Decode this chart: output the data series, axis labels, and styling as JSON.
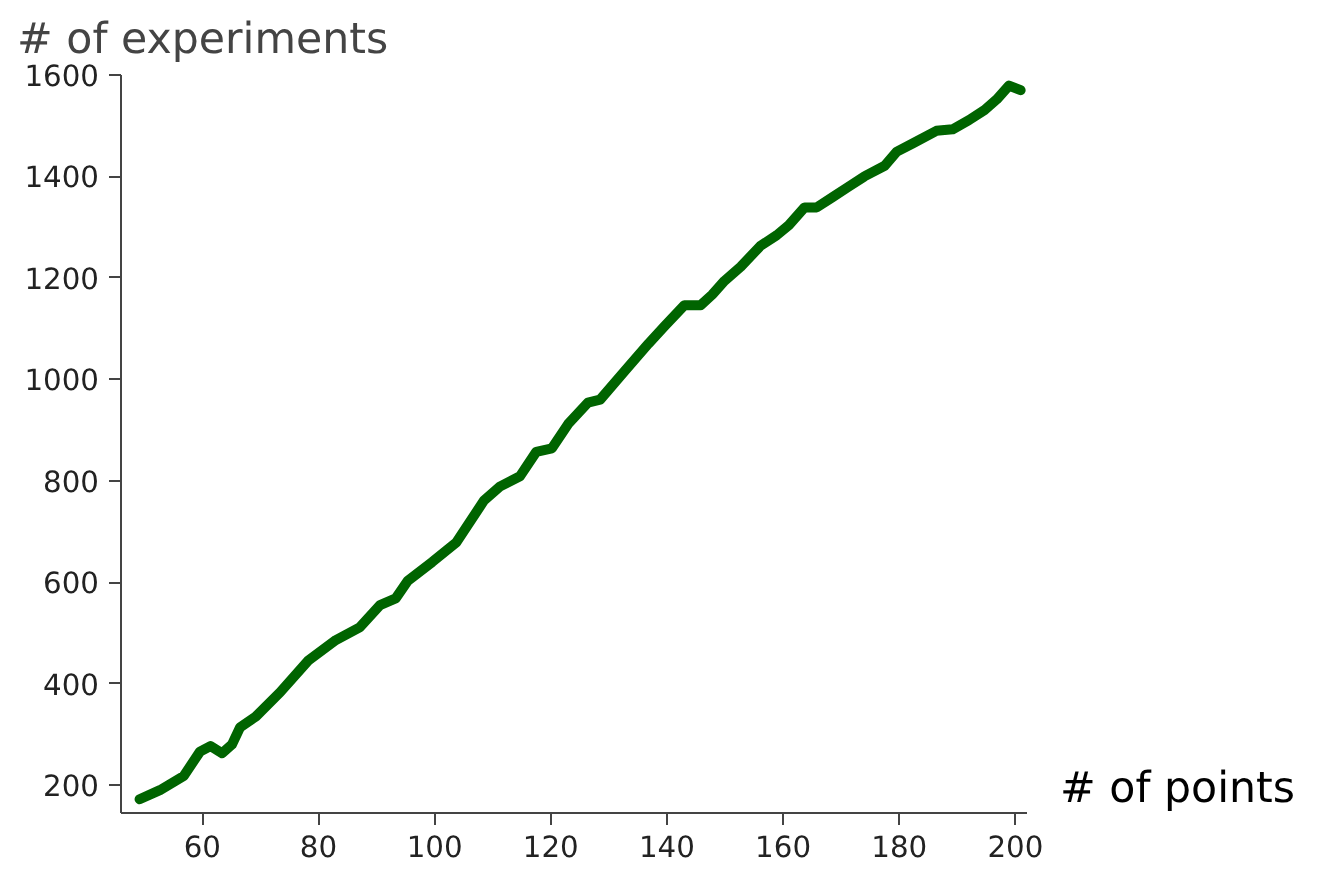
{
  "chart_data": {
    "type": "line",
    "xlabel": "# of points",
    "ylabel": "# of experiments",
    "x": [
      49.2,
      52.7,
      56.8,
      59.6,
      61.4,
      63.4,
      65.1,
      66.5,
      69.2,
      73.4,
      78.2,
      83,
      87.1,
      90.6,
      93.3,
      95.4,
      99.6,
      103.7,
      108.5,
      111.3,
      114.7,
      117.5,
      120.2,
      123,
      126.4,
      128.5,
      132.7,
      136.8,
      139.6,
      143,
      145.8,
      147.8,
      149.9,
      152.7,
      156.1,
      158.9,
      161,
      163.7,
      165.8,
      168.5,
      171.3,
      174,
      177.5,
      179.6,
      182.3,
      186.4,
      189.2,
      192,
      194.7,
      196.8,
      198.9,
      200.9
    ],
    "series": [
      {
        "color": "#006400",
        "values": [
          172,
          190,
          218,
          266,
          277,
          263,
          280,
          314,
          335,
          383,
          445,
          486,
          511,
          555,
          568,
          603,
          640,
          678,
          761,
          789,
          809,
          857,
          864,
          912,
          954,
          960,
          1016,
          1070,
          1105,
          1146,
          1146,
          1167,
          1194,
          1222,
          1263,
          1284,
          1304,
          1339,
          1339,
          1359,
          1380,
          1400,
          1421,
          1449,
          1465,
          1490,
          1493,
          1511,
          1531,
          1552,
          1579,
          1570
        ]
      }
    ],
    "xlim": [
      46,
      202
    ],
    "ylim": [
      145,
      1600
    ],
    "xticks": [
      60,
      80,
      100,
      120,
      140,
      160,
      180,
      200
    ],
    "yticks": [
      200,
      400,
      600,
      800,
      1000,
      1200,
      1400,
      1600
    ],
    "grid": false,
    "marker": "none",
    "line_style": "solid"
  }
}
